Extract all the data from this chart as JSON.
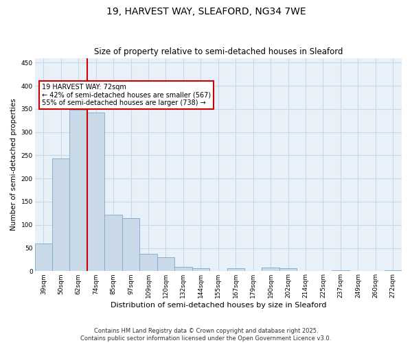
{
  "title_line1": "19, HARVEST WAY, SLEAFORD, NG34 7WE",
  "title_line2": "Size of property relative to semi-detached houses in Sleaford",
  "xlabel": "Distribution of semi-detached houses by size in Sleaford",
  "ylabel": "Number of semi-detached properties",
  "categories": [
    "39sqm",
    "50sqm",
    "62sqm",
    "74sqm",
    "85sqm",
    "97sqm",
    "109sqm",
    "120sqm",
    "132sqm",
    "144sqm",
    "155sqm",
    "167sqm",
    "179sqm",
    "190sqm",
    "202sqm",
    "214sqm",
    "225sqm",
    "237sqm",
    "249sqm",
    "260sqm",
    "272sqm"
  ],
  "values": [
    60,
    243,
    349,
    343,
    122,
    115,
    38,
    30,
    9,
    7,
    0,
    7,
    0,
    8,
    7,
    0,
    0,
    2,
    0,
    0,
    2
  ],
  "bar_color": "#c9d9e8",
  "bar_edge_color": "#7aa8cc",
  "grid_color": "#c8d8e8",
  "bg_color": "#e8f0f8",
  "vline_x": 2.5,
  "vline_color": "#cc0000",
  "annotation_text": "19 HARVEST WAY: 72sqm\n← 42% of semi-detached houses are smaller (567)\n55% of semi-detached houses are larger (738) →",
  "annotation_box_color": "#cc0000",
  "footer_text": "Contains HM Land Registry data © Crown copyright and database right 2025.\nContains public sector information licensed under the Open Government Licence v3.0.",
  "ylim": [
    0,
    460
  ],
  "yticks": [
    0,
    50,
    100,
    150,
    200,
    250,
    300,
    350,
    400,
    450
  ],
  "title1_fontsize": 10,
  "title2_fontsize": 8.5,
  "ylabel_fontsize": 7.5,
  "xlabel_fontsize": 8,
  "tick_fontsize": 6.5,
  "footer_fontsize": 6,
  "ann_fontsize": 7
}
